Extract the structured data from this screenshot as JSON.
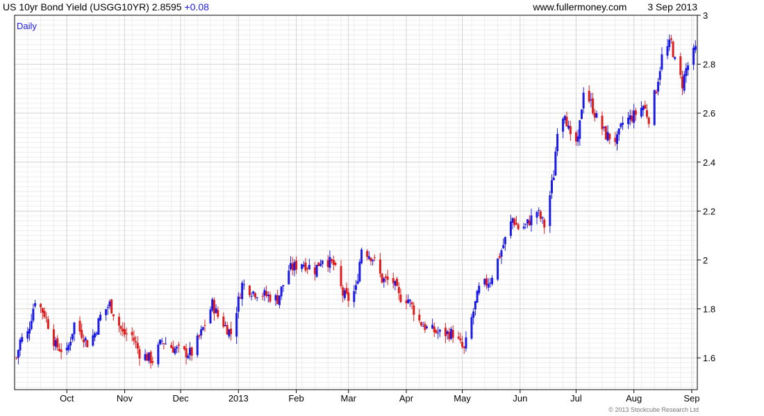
{
  "header": {
    "title": "US 10yr Bond Yield (USGG10YR)",
    "last_value": "2.8595",
    "change": "+0.08",
    "source": "www.fullermoney.com",
    "date": "3 Sep 2013"
  },
  "footer": {
    "copyright": "© 2013 Stockcube Research Ltd"
  },
  "chart_data": {
    "type": "candlestick",
    "period_label": "Daily",
    "y_ticks": [
      "1.6",
      "1.8",
      "2",
      "2.2",
      "2.4",
      "2.6",
      "2.8",
      "3"
    ],
    "ylim": [
      1.47,
      3.0
    ],
    "x_ticks": [
      "Oct",
      "Nov",
      "Dec",
      "2013",
      "Feb",
      "Mar",
      "Apr",
      "May",
      "Jun",
      "Jul",
      "Aug",
      "Sep"
    ],
    "grid": true,
    "colors": {
      "up": "#1a1ae6",
      "down": "#e01b1b",
      "grid": "#d4d4d4",
      "minor_grid": "#ececec"
    },
    "anchors": [
      [
        "2012-09-04",
        1.6
      ],
      [
        "2012-09-06",
        1.67
      ],
      [
        "2012-09-10",
        1.7
      ],
      [
        "2012-09-14",
        1.84
      ],
      [
        "2012-09-19",
        1.78
      ],
      [
        "2012-09-25",
        1.65
      ],
      [
        "2012-10-01",
        1.62
      ],
      [
        "2012-10-05",
        1.74
      ],
      [
        "2012-10-09",
        1.7
      ],
      [
        "2012-10-12",
        1.66
      ],
      [
        "2012-10-16",
        1.7
      ],
      [
        "2012-10-19",
        1.77
      ],
      [
        "2012-10-24",
        1.82
      ],
      [
        "2012-10-31",
        1.7
      ],
      [
        "2012-11-05",
        1.69
      ],
      [
        "2012-11-09",
        1.62
      ],
      [
        "2012-11-16",
        1.59
      ],
      [
        "2012-11-21",
        1.67
      ],
      [
        "2012-11-27",
        1.64
      ],
      [
        "2012-12-03",
        1.62
      ],
      [
        "2012-12-07",
        1.62
      ],
      [
        "2012-12-12",
        1.7
      ],
      [
        "2012-12-18",
        1.82
      ],
      [
        "2012-12-21",
        1.77
      ],
      [
        "2012-12-28",
        1.7
      ],
      [
        "2013-01-03",
        1.9
      ],
      [
        "2013-01-09",
        1.87
      ],
      [
        "2013-01-14",
        1.86
      ],
      [
        "2013-01-22",
        1.84
      ],
      [
        "2013-01-28",
        1.96
      ],
      [
        "2013-02-04",
        1.99
      ],
      [
        "2013-02-11",
        1.96
      ],
      [
        "2013-02-15",
        2.01
      ],
      [
        "2013-02-21",
        1.98
      ],
      [
        "2013-02-26",
        1.86
      ],
      [
        "2013-03-01",
        1.84
      ],
      [
        "2013-03-05",
        1.88
      ],
      [
        "2013-03-08",
        2.05
      ],
      [
        "2013-03-14",
        2.01
      ],
      [
        "2013-03-19",
        1.92
      ],
      [
        "2013-03-25",
        1.91
      ],
      [
        "2013-03-28",
        1.85
      ],
      [
        "2013-04-02",
        1.84
      ],
      [
        "2013-04-08",
        1.75
      ],
      [
        "2013-04-12",
        1.72
      ],
      [
        "2013-04-19",
        1.7
      ],
      [
        "2013-04-26",
        1.7
      ],
      [
        "2013-05-02",
        1.63
      ],
      [
        "2013-05-06",
        1.76
      ],
      [
        "2013-05-10",
        1.88
      ],
      [
        "2013-05-16",
        1.92
      ],
      [
        "2013-05-22",
        2.04
      ],
      [
        "2013-05-28",
        2.17
      ],
      [
        "2013-05-31",
        2.13
      ],
      [
        "2013-06-04",
        2.14
      ],
      [
        "2013-06-10",
        2.2
      ],
      [
        "2013-06-14",
        2.14
      ],
      [
        "2013-06-19",
        2.35
      ],
      [
        "2013-06-21",
        2.54
      ],
      [
        "2013-06-25",
        2.61
      ],
      [
        "2013-06-28",
        2.49
      ],
      [
        "2013-07-02",
        2.48
      ],
      [
        "2013-07-05",
        2.7
      ],
      [
        "2013-07-09",
        2.64
      ],
      [
        "2013-07-12",
        2.58
      ],
      [
        "2013-07-17",
        2.51
      ],
      [
        "2013-07-23",
        2.49
      ],
      [
        "2013-07-26",
        2.56
      ],
      [
        "2013-08-01",
        2.59
      ],
      [
        "2013-08-06",
        2.63
      ],
      [
        "2013-08-09",
        2.58
      ],
      [
        "2013-08-13",
        2.7
      ],
      [
        "2013-08-16",
        2.83
      ],
      [
        "2013-08-21",
        2.89
      ],
      [
        "2013-08-23",
        2.81
      ],
      [
        "2013-08-27",
        2.72
      ],
      [
        "2013-08-29",
        2.78
      ],
      [
        "2013-09-03",
        2.86
      ]
    ]
  }
}
